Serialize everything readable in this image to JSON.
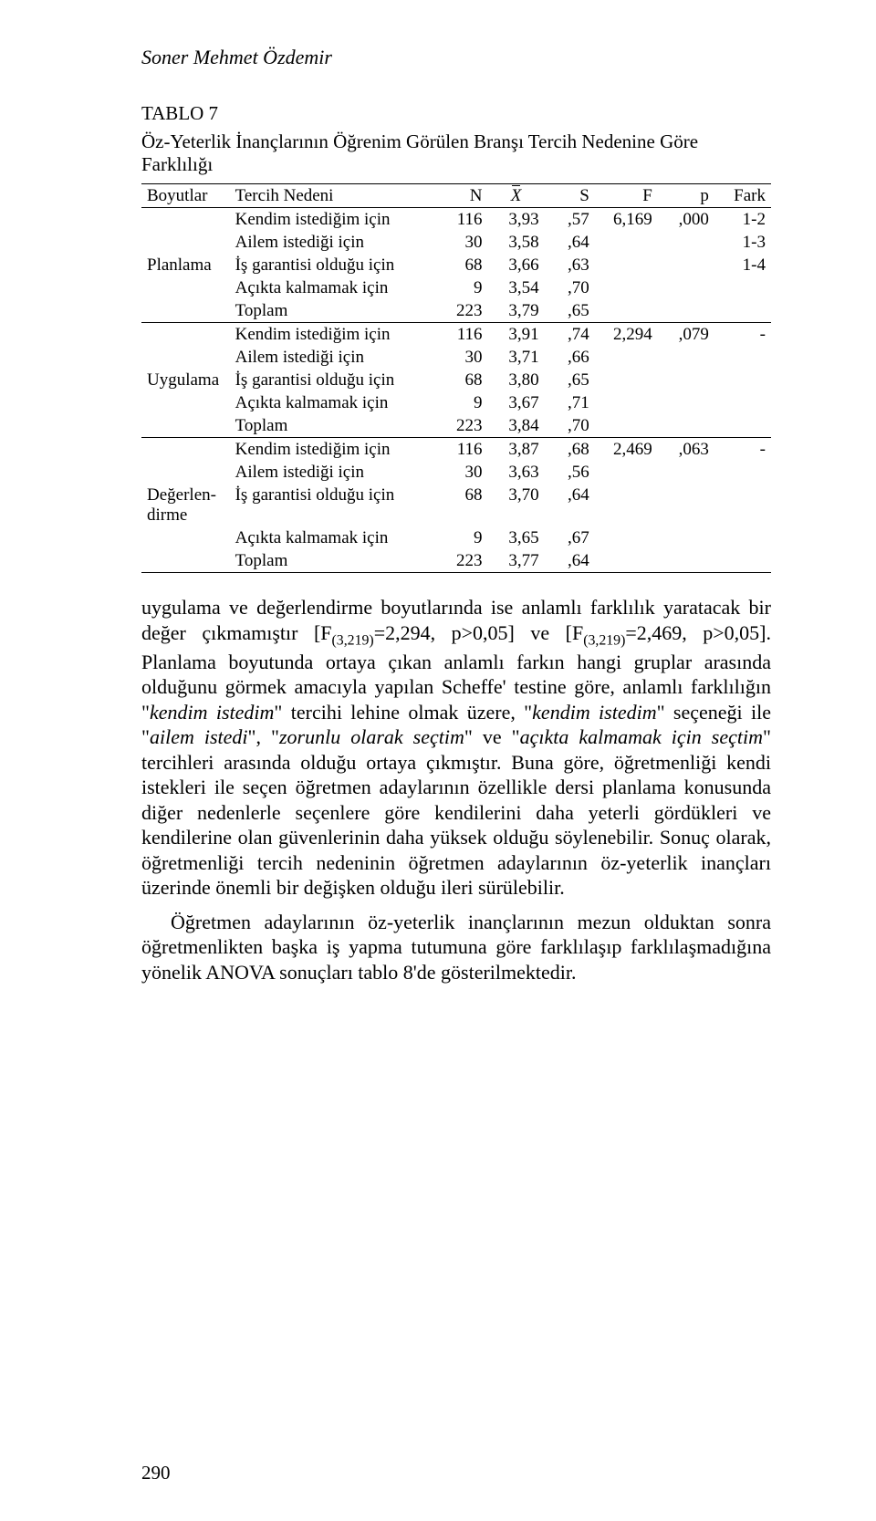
{
  "author": "Soner Mehmet Özdemir",
  "table": {
    "label": "TABLO 7",
    "caption": "Öz-Yeterlik İnançlarının Öğrenim Görülen Branşı Tercih Nedenine Göre Farklılığı",
    "columns": {
      "boyutlar": "Boyutlar",
      "tercih_nedeni": "Tercih Nedeni",
      "n": "N",
      "xbar": "X",
      "s": "S",
      "f": "F",
      "p": "p",
      "fark": "Fark"
    },
    "groups": [
      {
        "name": "Planlama",
        "rows": [
          {
            "label": "Kendim istediğim için",
            "n": "116",
            "xbar": "3,93",
            "s": ",57",
            "f": "6,169",
            "p": ",000",
            "fark": "1-2"
          },
          {
            "label": "Ailem istediği için",
            "n": "30",
            "xbar": "3,58",
            "s": ",64",
            "f": "",
            "p": "",
            "fark": "1-3"
          },
          {
            "label": "İş garantisi olduğu için",
            "n": "68",
            "xbar": "3,66",
            "s": ",63",
            "f": "",
            "p": "",
            "fark": "1-4"
          },
          {
            "label": "Açıkta kalmamak için",
            "n": "9",
            "xbar": "3,54",
            "s": ",70",
            "f": "",
            "p": "",
            "fark": ""
          },
          {
            "label": "Toplam",
            "n": "223",
            "xbar": "3,79",
            "s": ",65",
            "f": "",
            "p": "",
            "fark": ""
          }
        ]
      },
      {
        "name": "Uygulama",
        "rows": [
          {
            "label": "Kendim istediğim için",
            "n": "116",
            "xbar": "3,91",
            "s": ",74",
            "f": "2,294",
            "p": ",079",
            "fark": "-"
          },
          {
            "label": "Ailem istediği için",
            "n": "30",
            "xbar": "3,71",
            "s": ",66",
            "f": "",
            "p": "",
            "fark": ""
          },
          {
            "label": "İş garantisi olduğu için",
            "n": "68",
            "xbar": "3,80",
            "s": ",65",
            "f": "",
            "p": "",
            "fark": ""
          },
          {
            "label": "Açıkta kalmamak için",
            "n": "9",
            "xbar": "3,67",
            "s": ",71",
            "f": "",
            "p": "",
            "fark": ""
          },
          {
            "label": "Toplam",
            "n": "223",
            "xbar": "3,84",
            "s": ",70",
            "f": "",
            "p": "",
            "fark": ""
          }
        ]
      },
      {
        "name": "Değerlen-dirme",
        "rows": [
          {
            "label": "Kendim istediğim için",
            "n": "116",
            "xbar": "3,87",
            "s": ",68",
            "f": "2,469",
            "p": ",063",
            "fark": "-"
          },
          {
            "label": "Ailem istediği için",
            "n": "30",
            "xbar": "3,63",
            "s": ",56",
            "f": "",
            "p": "",
            "fark": ""
          },
          {
            "label": "İş garantisi olduğu için",
            "n": "68",
            "xbar": "3,70",
            "s": ",64",
            "f": "",
            "p": "",
            "fark": ""
          },
          {
            "label": "Açıkta kalmamak için",
            "n": "9",
            "xbar": "3,65",
            "s": ",67",
            "f": "",
            "p": "",
            "fark": ""
          },
          {
            "label": "Toplam",
            "n": "223",
            "xbar": "3,77",
            "s": ",64",
            "f": "",
            "p": "",
            "fark": ""
          }
        ]
      }
    ],
    "col_widths": [
      "14%",
      "33%",
      "8%",
      "9%",
      "8%",
      "10%",
      "9%",
      "9%"
    ],
    "font_size_pt": 14,
    "border_color": "#000000",
    "background_color": "#ffffff"
  },
  "paragraphs": {
    "p1_pre": "uygulama ve değerlendirme boyutlarında ise anlamlı farklılık yaratacak bir değer çıkmamıştır [F",
    "p1_s1": "(3,219)",
    "p1_mid": "=2,294, p>0,05] ve [F",
    "p1_s2": "(3,219)",
    "p1_post": "=2,469, p>0,05]. Planlama boyutunda ortaya çıkan anlamlı farkın hangi gruplar arasında olduğunu görmek amacıyla yapılan Scheffe' testine göre, anlamlı farklılığın ",
    "p1_it1_pre": "\"",
    "p1_it1": "kendim istedim",
    "p1_it1_post": "\" tercihi lehine olmak üzere, \"",
    "p1_it2": "kendim istedim",
    "p1_it2_post": "\" seçeneği ile \"",
    "p1_it3": "ailem istedi",
    "p1_it3_post": "\", \"",
    "p1_it4": "zorunlu olarak seçtim",
    "p1_it4_post": "\" ve \"",
    "p1_it5": "açıkta kalmamak için seçtim",
    "p1_it5_post": "\" tercihleri arasında olduğu ortaya çıkmıştır. Buna göre, öğretmenliği kendi istekleri ile seçen öğretmen adaylarının özellikle dersi planlama konusunda diğer nedenlerle seçenlere göre kendilerini daha yeterli gördükleri ve kendilerine olan güvenlerinin daha yüksek olduğu söylenebilir. Sonuç olarak, öğretmenliği tercih nedeninin öğretmen adaylarının öz-yeterlik inançları üzerinde önemli bir değişken olduğu ileri sürülebilir.",
    "p2": "Öğretmen adaylarının öz-yeterlik inançlarının mezun olduktan sonra öğretmenlikten başka iş yapma tutumuna göre farklılaşıp farklılaşmadığına yönelik ANOVA sonuçları tablo 8'de gösterilmektedir."
  },
  "page_number": "290"
}
